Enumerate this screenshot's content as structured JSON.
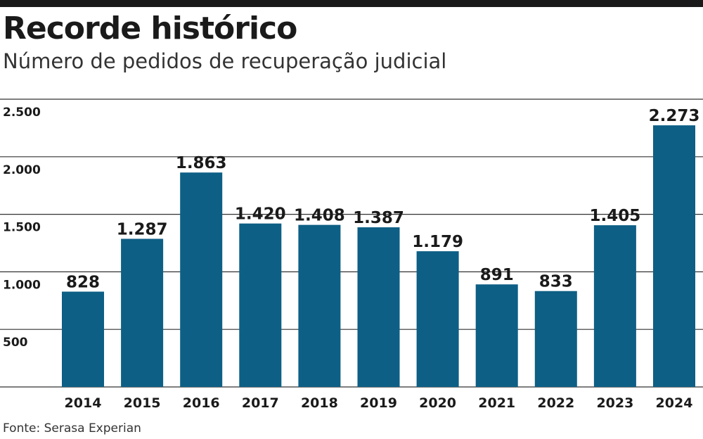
{
  "header": {
    "title": "Recorde histórico",
    "subtitle": "Número de pedidos de recuperação judicial"
  },
  "footer": {
    "source": "Fonte: Serasa Experian"
  },
  "colors": {
    "bar": "#0d5f85",
    "text": "#1a1a1a",
    "gridline": "#333333",
    "top_rule": "#1a1a1a"
  },
  "chart_data": {
    "type": "bar",
    "title": "Recorde histórico",
    "subtitle": "Número de pedidos de recuperação judicial",
    "categories": [
      "2014",
      "2015",
      "2016",
      "2017",
      "2018",
      "2019",
      "2020",
      "2021",
      "2022",
      "2023",
      "2024"
    ],
    "values": [
      828,
      1287,
      1863,
      1420,
      1408,
      1387,
      1179,
      891,
      833,
      1405,
      2273
    ],
    "value_labels": [
      "828",
      "1.287",
      "1.863",
      "1.420",
      "1.408",
      "1.387",
      "1.179",
      "891",
      "833",
      "1.405",
      "2.273"
    ],
    "yticks": [
      500,
      1000,
      1500,
      2000,
      2500
    ],
    "ytick_labels": [
      "500",
      "1.000",
      "1.500",
      "2.000",
      "2.500"
    ],
    "ylim": [
      0,
      2500
    ],
    "xlabel": "",
    "ylabel": "",
    "grid": true,
    "legend": "none",
    "source": "Fonte: Serasa Experian"
  }
}
